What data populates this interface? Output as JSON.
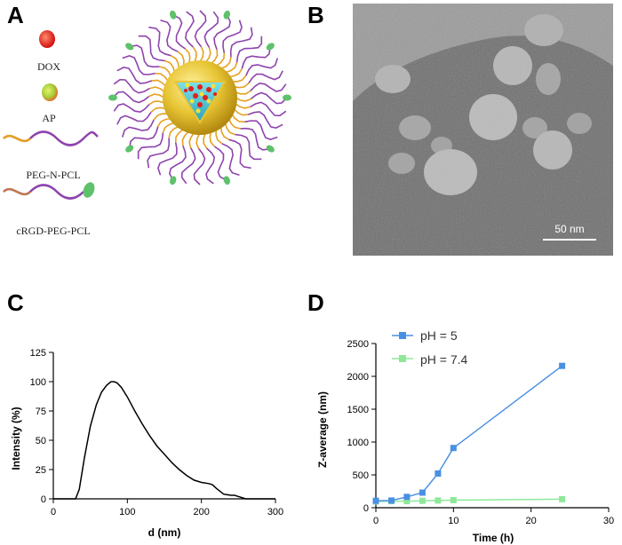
{
  "panel_labels": [
    "A",
    "B",
    "C",
    "D"
  ],
  "schematic": {
    "legend": [
      "DOX",
      "AP",
      "PEG-N-PCL",
      "cRGD-PEG-PCL"
    ],
    "colors": {
      "dox": "#e0211b",
      "ap": "#a6d43a",
      "peg": "#8e44ad",
      "pcl": "#e6a11f",
      "crgd": "#5ec16b",
      "core_shell": "#d9b21f",
      "core_inner": "#3ab7c9"
    }
  },
  "tem": {
    "scale_bar": "50 nm"
  },
  "chart_data": [
    {
      "type": "line",
      "panel": "C",
      "xlabel": "d (nm)",
      "ylabel": "Intensity (%)",
      "xlim": [
        0,
        300
      ],
      "ylim": [
        0,
        125
      ],
      "xticks": [
        "0",
        "100",
        "200",
        "300"
      ],
      "yticks": [
        "0",
        "25",
        "50",
        "75",
        "100",
        "125"
      ],
      "grid": false,
      "series": [
        {
          "x": [
            0,
            30,
            35,
            42,
            50,
            58,
            65,
            72,
            78,
            82,
            86,
            92,
            100,
            110,
            120,
            130,
            140,
            150,
            160,
            170,
            180,
            190,
            200,
            210,
            215,
            220,
            230,
            240,
            245,
            250,
            255,
            260,
            300
          ],
          "y": [
            0,
            0,
            8,
            35,
            62,
            80,
            91,
            97,
            100,
            100,
            99,
            95,
            87,
            75,
            64,
            54,
            45,
            38,
            31,
            25,
            20,
            16,
            14,
            13,
            12,
            9,
            4,
            3,
            3,
            2,
            1,
            0,
            0
          ]
        }
      ],
      "color": "#000000"
    },
    {
      "type": "line",
      "panel": "D",
      "xlabel": "Time (h)",
      "ylabel": "Z-average (nm)",
      "xlim": [
        0,
        30
      ],
      "ylim": [
        0,
        2500
      ],
      "xticks": [
        "0",
        "10",
        "20",
        "30"
      ],
      "yticks": [
        "0",
        "500",
        "1000",
        "1500",
        "2000",
        "2500"
      ],
      "legend_position": "top-left",
      "series": [
        {
          "name": "pH = 5",
          "color": "#4a90e2",
          "x": [
            0,
            2,
            4,
            6,
            8,
            10,
            24
          ],
          "y": [
            105,
            110,
            165,
            230,
            520,
            910,
            2160
          ]
        },
        {
          "name": "pH = 7.4",
          "color": "#8fe89a",
          "x": [
            0,
            2,
            4,
            6,
            8,
            10,
            24
          ],
          "y": [
            95,
            100,
            100,
            105,
            110,
            115,
            130
          ]
        }
      ]
    }
  ]
}
